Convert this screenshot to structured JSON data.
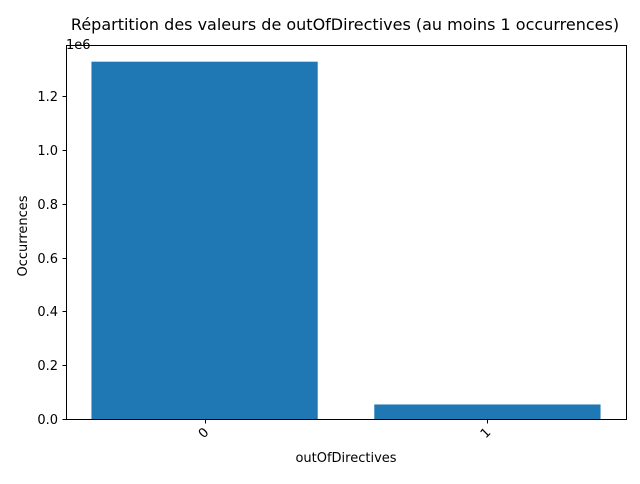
{
  "chart_data": {
    "type": "bar",
    "title": "Répartition des valeurs de outOfDirectives (au moins 1 occurrences)",
    "xlabel": "outOfDirectives",
    "ylabel": "Occurrences",
    "categories": [
      "0",
      "1"
    ],
    "values": [
      1328000,
      54000
    ],
    "ylim": [
      0,
      1390000
    ],
    "yticks": [
      0,
      200000,
      400000,
      600000,
      800000,
      1000000,
      1200000
    ],
    "ytick_labels": [
      "0.0",
      "0.2",
      "0.4",
      "0.6",
      "0.8",
      "1.0",
      "1.2"
    ],
    "y_offset_label": "1e6",
    "xtick_rotation": 45,
    "bar_color": "#1f77b4",
    "grid": false,
    "legend": "none"
  }
}
